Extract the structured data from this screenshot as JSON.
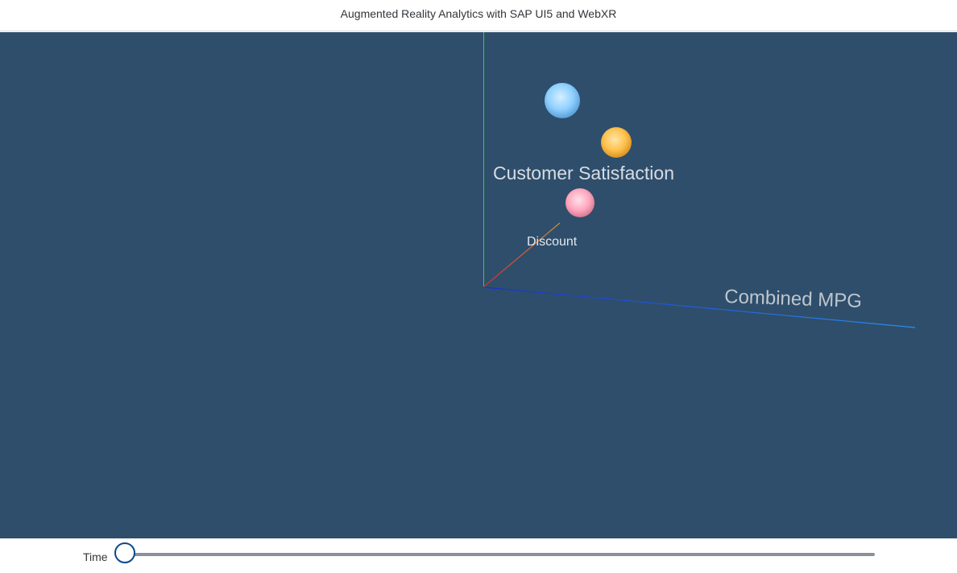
{
  "header": {
    "title": "Augmented Reality Analytics with SAP UI5 and WebXR"
  },
  "scene": {
    "background": "#2e4e6c",
    "axes": {
      "y_label": "Customer Satisfaction",
      "z_label": "Discount",
      "x_label": "Combined MPG",
      "y_color": "#3ccf3c",
      "z_color": "#c8412e",
      "x_color": "#1c46d8"
    },
    "bubbles": [
      {
        "color": "#8fd0ff"
      },
      {
        "color": "#ffc14d"
      },
      {
        "color": "#ffa8bf"
      }
    ]
  },
  "footer": {
    "slider_label": "Time",
    "slider_value": 0
  }
}
